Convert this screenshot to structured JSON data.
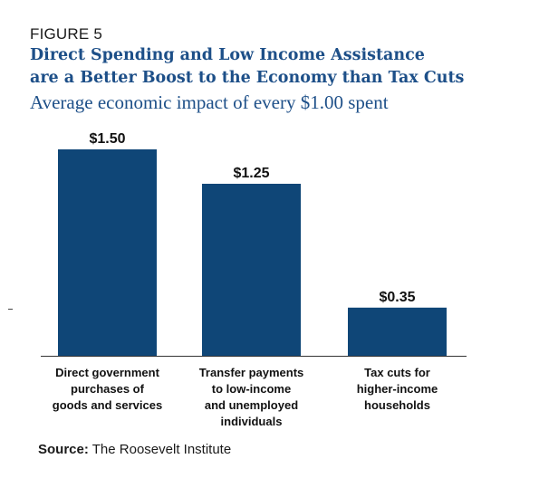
{
  "figure_label": "FIGURE 5",
  "title_lines": [
    "Direct Spending and Low Income Assistance",
    "are a Better Boost to the Economy than Tax Cuts"
  ],
  "subtitle": "Average economic impact of every $1.00 spent",
  "source": {
    "label": "Source:",
    "text": "The Roosevelt Institute"
  },
  "colors": {
    "bar": "#0f4677",
    "title": "#1d4f88"
  },
  "chart_data": {
    "type": "bar",
    "title": "",
    "xlabel": "",
    "ylabel": "",
    "ylim": [
      0,
      1.5
    ],
    "grid": false,
    "categories": [
      [
        "Direct government",
        "purchases of",
        "goods and services"
      ],
      [
        "Transfer payments",
        "to low-income",
        "and unemployed",
        "individuals"
      ],
      [
        "Tax cuts for",
        "higher-income",
        "households"
      ]
    ],
    "values": [
      1.5,
      1.25,
      0.35
    ],
    "data_labels": [
      "$1.50",
      "$1.25",
      "$0.35"
    ]
  }
}
